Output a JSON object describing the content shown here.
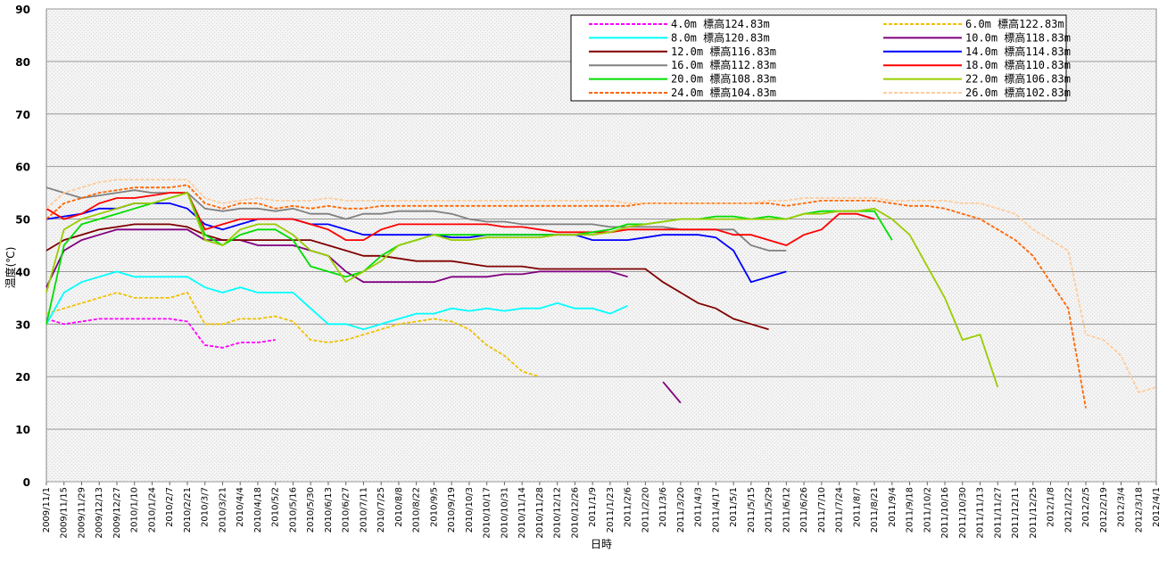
{
  "chart_data": {
    "type": "line",
    "y_label": "温度(℃)",
    "x_label": "日時",
    "x": [
      "2009/11/1",
      "2009/11/15",
      "2009/11/29",
      "2009/12/13",
      "2009/12/27",
      "2010/1/10",
      "2010/1/24",
      "2010/2/7",
      "2010/2/21",
      "2010/3/7",
      "2010/3/21",
      "2010/4/4",
      "2010/4/18",
      "2010/5/2",
      "2010/5/16",
      "2010/5/30",
      "2010/6/13",
      "2010/6/27",
      "2010/7/11",
      "2010/7/25",
      "2010/8/8",
      "2010/8/22",
      "2010/9/5",
      "2010/9/19",
      "2010/10/3",
      "2010/10/17",
      "2010/10/31",
      "2010/11/14",
      "2010/11/28",
      "2010/12/12",
      "2010/12/26",
      "2011/1/9",
      "2011/1/23",
      "2011/2/6",
      "2011/2/20",
      "2011/3/6",
      "2011/3/20",
      "2011/4/3",
      "2011/4/17",
      "2011/5/1",
      "2011/5/15",
      "2011/5/29",
      "2011/6/12",
      "2011/6/26",
      "2011/7/10",
      "2011/7/24",
      "2011/8/7",
      "2011/8/21",
      "2011/9/4",
      "2011/9/18",
      "2011/10/2",
      "2011/10/16",
      "2011/10/30",
      "2011/11/13",
      "2011/11/27",
      "2011/12/11",
      "2011/12/25",
      "2012/1/8",
      "2012/1/22",
      "2012/2/5",
      "2012/2/19",
      "2012/3/4",
      "2012/3/18",
      "2012/4/1"
    ],
    "xlim": [
      "2009/11/1",
      "2012/4/1"
    ],
    "ylim": [
      0,
      90
    ],
    "yticks": [
      0,
      10,
      20,
      30,
      40,
      50,
      60,
      70,
      80,
      90
    ],
    "grid": true,
    "legend": "top-right",
    "series": [
      {
        "name": "4.0m  標高124.83m",
        "color": "#ff00ff",
        "style": "dashed",
        "values": [
          31,
          30,
          30.5,
          31,
          31,
          31,
          31,
          31,
          30.5,
          26,
          25.5,
          26.5,
          26.5,
          27,
          null,
          null,
          null,
          null,
          null,
          null,
          null,
          null,
          null,
          null,
          null,
          null,
          null,
          null,
          null,
          null,
          null,
          null,
          null,
          null,
          null,
          null,
          null,
          null,
          null,
          null,
          null,
          null,
          null,
          null,
          null,
          null,
          null,
          null,
          null,
          null,
          null,
          null,
          null,
          null,
          null,
          null,
          null,
          null,
          null,
          null,
          null,
          null,
          null,
          null
        ]
      },
      {
        "name": "6.0m  標高122.83m",
        "color": "#f0c000",
        "style": "dashed",
        "values": [
          32,
          33,
          34,
          35,
          36,
          35,
          35,
          35,
          36,
          30,
          30,
          31,
          31,
          31.5,
          30.5,
          27,
          26.5,
          27,
          28,
          29,
          30,
          30.5,
          31,
          30.5,
          29,
          26,
          24,
          21,
          20,
          null,
          null,
          null,
          null,
          null,
          null,
          null,
          null,
          null,
          null,
          null,
          null,
          null,
          null,
          null,
          null,
          null,
          null,
          null,
          null,
          null,
          null,
          null,
          null,
          null,
          null,
          null,
          null,
          null,
          null,
          null,
          null,
          null,
          null,
          null
        ]
      },
      {
        "name": "8.0m  標高120.83m",
        "color": "#00ffff",
        "style": "solid",
        "values": [
          30,
          36,
          38,
          39,
          40,
          39,
          39,
          39,
          39,
          37,
          36,
          37,
          36,
          36,
          36,
          33,
          30,
          30,
          29,
          30,
          31,
          32,
          32,
          33,
          32.5,
          33,
          32.5,
          33,
          33,
          34,
          33,
          33,
          32,
          33.5,
          null,
          null,
          null,
          null,
          null,
          null,
          null,
          null,
          null,
          null,
          null,
          null,
          null,
          null,
          null,
          null,
          null,
          null,
          null,
          null,
          null,
          null,
          null,
          null,
          null,
          null,
          null,
          null,
          null,
          null
        ]
      },
      {
        "name": "10.0m  標高118.83m",
        "color": "#800080",
        "style": "solid",
        "values": [
          37,
          44,
          46,
          47,
          48,
          48,
          48,
          48,
          48,
          46,
          46,
          46,
          45,
          45,
          45,
          44,
          43,
          40,
          38,
          38,
          38,
          38,
          38,
          39,
          39,
          39,
          39.5,
          39.5,
          40,
          40,
          40,
          40,
          40,
          39,
          null,
          19,
          15,
          null,
          null,
          null,
          null,
          null,
          null,
          null,
          null,
          null,
          null,
          null,
          null,
          null,
          null,
          null,
          null,
          null,
          null,
          null,
          null,
          null,
          null,
          null,
          null,
          null,
          null,
          null
        ]
      },
      {
        "name": "12.0m  標高116.83m",
        "color": "#800000",
        "style": "solid",
        "values": [
          44,
          46,
          47,
          48,
          48.5,
          49,
          49,
          49,
          48.5,
          47,
          46,
          46,
          46,
          46,
          46,
          46,
          45,
          44,
          43,
          43,
          42.5,
          42,
          42,
          42,
          41.5,
          41,
          41,
          41,
          40.5,
          40.5,
          40.5,
          40.5,
          40.5,
          40.5,
          40.5,
          38,
          36,
          34,
          33,
          31,
          30,
          29,
          null,
          null,
          null,
          null,
          null,
          null,
          null,
          null,
          null,
          null,
          null,
          null,
          null,
          null,
          null,
          null,
          null,
          null,
          null,
          null,
          null,
          null
        ]
      },
      {
        "name": "14.0m  標高114.83m",
        "color": "#0000ff",
        "style": "solid",
        "values": [
          50,
          50.5,
          51,
          52,
          52,
          53,
          53,
          53,
          52,
          49,
          48,
          49,
          50,
          50,
          50,
          49,
          49,
          48,
          47,
          47,
          47,
          47,
          47,
          46.5,
          46.5,
          47,
          47,
          47,
          47,
          47,
          47,
          46,
          46,
          46,
          46.5,
          47,
          47,
          47,
          46.5,
          44,
          38,
          39,
          40,
          null,
          null,
          null,
          null,
          null,
          null,
          null,
          null,
          null,
          null,
          null,
          null,
          null,
          null,
          null,
          null,
          null,
          null,
          null,
          null,
          null
        ]
      },
      {
        "name": "16.0m  標高112.83m",
        "color": "#808080",
        "style": "solid",
        "values": [
          56,
          55,
          54,
          54.5,
          55,
          55.5,
          55,
          55,
          55,
          52,
          51.5,
          52,
          52,
          51.5,
          52,
          51,
          51,
          50,
          51,
          51,
          51.5,
          51.5,
          51.5,
          51,
          50,
          49.5,
          49.5,
          49,
          49,
          49,
          49,
          49,
          48.5,
          48.5,
          48.5,
          48.5,
          48,
          48,
          48,
          48,
          45,
          44,
          44,
          null,
          null,
          null,
          null,
          null,
          null,
          null,
          null,
          null,
          null,
          null,
          null,
          null,
          null,
          null,
          null,
          null,
          null,
          null,
          null,
          null
        ]
      },
      {
        "name": "18.0m  標高110.83m",
        "color": "#ff0000",
        "style": "solid",
        "values": [
          52,
          50,
          51,
          53,
          54,
          54,
          54.5,
          55,
          55,
          48,
          49,
          50,
          50,
          50,
          50,
          49,
          48,
          46,
          46,
          48,
          49,
          49,
          49,
          49,
          49,
          49,
          48.5,
          48.5,
          48,
          47.5,
          47.5,
          47.5,
          47.5,
          48,
          48,
          48,
          48,
          48,
          48,
          47,
          47,
          46,
          45,
          47,
          48,
          51,
          51,
          50,
          null,
          null,
          null,
          null,
          null,
          null,
          null,
          null,
          null,
          null,
          null,
          null,
          null,
          null,
          null,
          null
        ]
      },
      {
        "name": "20.0m  標高108.83m",
        "color": "#00dd00",
        "style": "solid",
        "values": [
          30,
          45,
          49,
          50,
          51,
          52,
          53,
          54,
          55,
          47,
          45,
          47,
          48,
          48,
          46,
          41,
          40,
          39,
          40,
          43,
          45,
          46,
          47,
          47,
          47,
          47,
          47,
          47,
          47,
          47,
          47,
          47.5,
          48,
          49,
          49,
          49.5,
          50,
          50,
          50.5,
          50.5,
          50,
          50.5,
          50,
          51,
          51.5,
          51.5,
          51.5,
          51.5,
          46,
          null,
          null,
          null,
          null,
          null,
          null,
          null,
          null,
          null,
          null,
          null,
          null,
          null,
          null,
          null
        ]
      },
      {
        "name": "22.0m  標高106.83m",
        "color": "#99cc00",
        "style": "solid",
        "values": [
          36,
          48,
          50,
          51,
          52,
          53,
          53,
          54,
          55,
          46,
          45,
          48,
          49,
          49,
          47,
          44,
          43,
          38,
          40,
          42,
          45,
          46,
          47,
          46,
          46,
          46.5,
          46.5,
          46.5,
          46.5,
          47,
          47,
          47,
          47.5,
          48.5,
          49,
          49.5,
          50,
          50,
          50,
          50,
          50,
          50,
          50,
          51,
          51,
          51.5,
          51.5,
          52,
          50,
          47,
          41,
          35,
          27,
          28,
          18,
          null,
          null,
          null,
          null,
          null,
          null,
          null,
          null,
          null
        ]
      },
      {
        "name": "24.0m  標高104.83m",
        "color": "#ff6600",
        "style": "dashed",
        "values": [
          50,
          53,
          54,
          55,
          55.5,
          56,
          56,
          56,
          56.5,
          53,
          52,
          53,
          53,
          52,
          52.5,
          52,
          52.5,
          52,
          52,
          52.5,
          52.5,
          52.5,
          52.5,
          52.5,
          52.5,
          52.5,
          52.5,
          52.5,
          52.5,
          52.5,
          52.5,
          52.5,
          52.5,
          52.5,
          53,
          53,
          53,
          53,
          53,
          53,
          53,
          53,
          52.5,
          53,
          53.5,
          53.5,
          53.5,
          53.5,
          53,
          52.5,
          52.5,
          52,
          51,
          50,
          48,
          46,
          43,
          38,
          33,
          14,
          null,
          null,
          null,
          null
        ]
      },
      {
        "name": "26.0m  標高102.83m",
        "color": "#ffcc99",
        "style": "dashed",
        "values": [
          52,
          55,
          56,
          57,
          57.5,
          57.5,
          57.5,
          57.5,
          57.5,
          54,
          53,
          53.5,
          54,
          53.5,
          53.5,
          53.5,
          54,
          53.5,
          53.5,
          53.5,
          53.5,
          53.5,
          53.5,
          53.5,
          53.5,
          53.5,
          53.5,
          53.5,
          53.5,
          53.5,
          53.5,
          53.5,
          53.5,
          53,
          53,
          53,
          53,
          53,
          53,
          53,
          53,
          53.5,
          53.5,
          54,
          54,
          54,
          54,
          54,
          53.5,
          53.5,
          53.5,
          53.5,
          53,
          53,
          52,
          51,
          48,
          46,
          44,
          28,
          27,
          24,
          17,
          18
        ]
      }
    ]
  }
}
